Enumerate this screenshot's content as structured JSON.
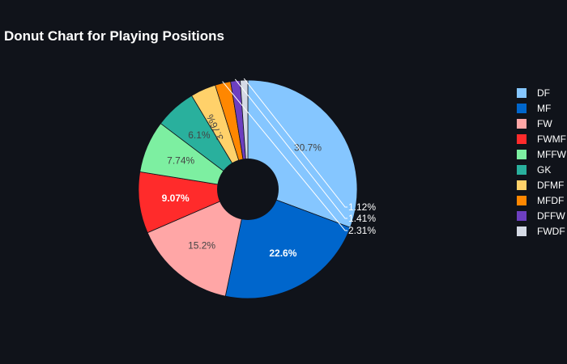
{
  "chart_data": {
    "type": "pie",
    "hole": true,
    "title": "Donut Chart for Playing Positions",
    "legend_position": "right",
    "categories": [
      "DF",
      "MF",
      "FW",
      "FWMF",
      "MFFW",
      "GK",
      "DFMF",
      "MFDF",
      "DFFW",
      "FWDF"
    ],
    "values": [
      30.7,
      22.6,
      15.2,
      9.07,
      7.74,
      6.1,
      3.76,
      2.31,
      1.41,
      1.12
    ],
    "labels": [
      "30.7%",
      "22.6%",
      "15.2%",
      "9.07%",
      "7.74%",
      "6.1%",
      "3.76%",
      "2.31%",
      "1.41%",
      "1.12%"
    ],
    "colors": [
      "#85c6ff",
      "#0066cc",
      "#ffa6a6",
      "#ff2b2b",
      "#7defa1",
      "#29b09d",
      "#ffd16a",
      "#ff8700",
      "#6d3fc0",
      "#d5dae5"
    ],
    "label_colors": [
      "#444444",
      "#ffffff",
      "#444444",
      "#ffffff",
      "#444444",
      "#444444",
      "#444444",
      "#ffffff",
      "#ffffff",
      "#ffffff"
    ],
    "label_placement": [
      "inside",
      "inside",
      "inside",
      "inside",
      "inside",
      "inside",
      "inside",
      "outside",
      "outside",
      "outside"
    ]
  }
}
